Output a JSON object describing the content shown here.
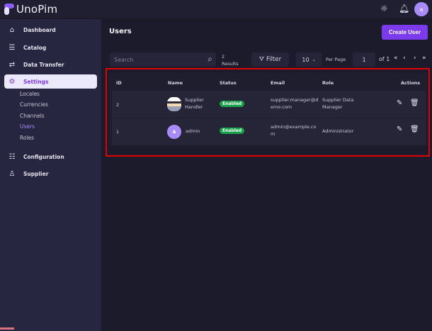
{
  "brand": {
    "name": "UnoPim"
  },
  "header": {
    "avatar_letter": "a",
    "icons": [
      "sun-icon",
      "bell-icon"
    ]
  },
  "sidebar": {
    "items": [
      {
        "label": "Dashboard",
        "icon": "home-icon"
      },
      {
        "label": "Catalog",
        "icon": "clipboard-icon"
      },
      {
        "label": "Data Transfer",
        "icon": "transfer-icon"
      },
      {
        "label": "Settings",
        "icon": "gear-icon"
      },
      {
        "label": "Configuration",
        "icon": "sliders-icon"
      },
      {
        "label": "Supplier",
        "icon": "user-gear-icon"
      }
    ],
    "settings_sub": [
      "Locales",
      "Currencies",
      "Channels",
      "Users",
      "Roles"
    ],
    "active_sub": "Users"
  },
  "page": {
    "title": "Users",
    "create_label": "Create User"
  },
  "toolbar": {
    "search_placeholder": "Search",
    "results_count": "2",
    "results_label": "Results",
    "filter_label": "Filter",
    "per_page": "10",
    "per_page_label": "Per Page",
    "page": "1",
    "of_label": "of 1"
  },
  "table": {
    "headers": [
      "ID",
      "Name",
      "Status",
      "Email",
      "Role",
      "Actions"
    ],
    "rows": [
      {
        "id": "2",
        "name": "Supplier Handler",
        "status": "Enabled",
        "email": "supplier.manager@demo.com",
        "role": "Supplier Data Manager",
        "avatar": "image"
      },
      {
        "id": "1",
        "name": "admin",
        "status": "Enabled",
        "email": "admin@example.com",
        "role": "Administrator",
        "avatar": "A"
      }
    ]
  },
  "colors": {
    "accent": "#7c3aed",
    "enabled": "#16a34a",
    "highlight": "#e10000"
  }
}
